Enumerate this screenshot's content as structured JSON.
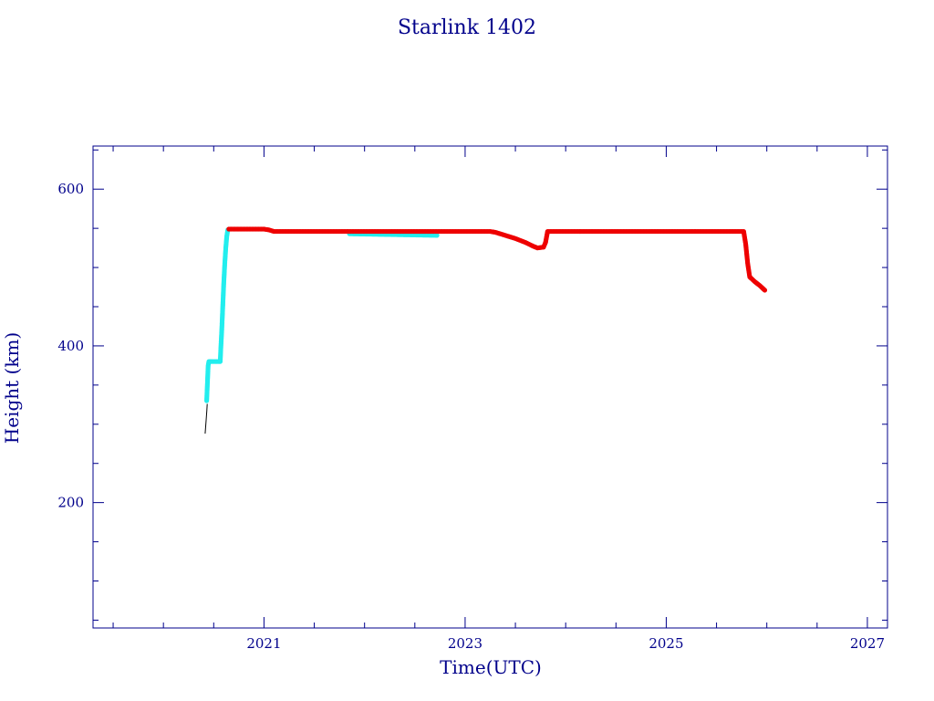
{
  "chart_data": {
    "type": "scatter",
    "title": "Starlink 1402",
    "xlabel": "Time(UTC)",
    "ylabel": "Height (km)",
    "xlim": [
      2019.3,
      2027.2
    ],
    "ylim": [
      40,
      655
    ],
    "x_ticks": [
      "2021",
      "2023",
      "2025",
      "2027"
    ],
    "y_ticks": [
      "200",
      "400",
      "600"
    ],
    "grid": false,
    "colors": {
      "axis": "#00008b",
      "text": "#00008b"
    },
    "series": [
      {
        "color": "#000000",
        "style": "line",
        "points": [
          [
            2020.415,
            288
          ],
          [
            2020.425,
            305
          ],
          [
            2020.432,
            318
          ],
          [
            2020.436,
            326
          ]
        ]
      },
      {
        "color": "#22eeee",
        "style": "markers",
        "points": [
          [
            2020.43,
            330
          ],
          [
            2020.435,
            345
          ],
          [
            2020.44,
            360
          ],
          [
            2020.445,
            375
          ],
          [
            2020.452,
            380
          ],
          [
            2020.48,
            380
          ],
          [
            2020.52,
            380
          ],
          [
            2020.555,
            380
          ],
          [
            2020.565,
            380
          ],
          [
            2020.57,
            395
          ],
          [
            2020.58,
            420
          ],
          [
            2020.59,
            450
          ],
          [
            2020.6,
            480
          ],
          [
            2020.61,
            505
          ],
          [
            2020.62,
            525
          ],
          [
            2020.63,
            540
          ],
          [
            2020.64,
            548
          ],
          [
            2021.85,
            543
          ],
          [
            2022.72,
            541
          ]
        ]
      },
      {
        "color": "#ee0000",
        "style": "markers",
        "points": [
          [
            2020.65,
            549
          ],
          [
            2020.8,
            549
          ],
          [
            2021.0,
            549
          ],
          [
            2021.05,
            548
          ],
          [
            2021.1,
            546
          ],
          [
            2021.5,
            546
          ],
          [
            2022.0,
            546
          ],
          [
            2022.5,
            546
          ],
          [
            2023.0,
            546
          ],
          [
            2023.25,
            546
          ],
          [
            2023.3,
            545
          ],
          [
            2023.4,
            541
          ],
          [
            2023.5,
            537
          ],
          [
            2023.6,
            532
          ],
          [
            2023.68,
            527
          ],
          [
            2023.72,
            525
          ],
          [
            2023.78,
            526
          ],
          [
            2023.8,
            532
          ],
          [
            2023.82,
            546
          ],
          [
            2023.9,
            546
          ],
          [
            2024.2,
            546
          ],
          [
            2024.6,
            546
          ],
          [
            2025.0,
            546
          ],
          [
            2025.4,
            546
          ],
          [
            2025.77,
            546
          ],
          [
            2025.79,
            530
          ],
          [
            2025.81,
            505
          ],
          [
            2025.83,
            488
          ],
          [
            2025.88,
            482
          ],
          [
            2025.93,
            477
          ],
          [
            2025.98,
            471
          ]
        ]
      }
    ]
  }
}
